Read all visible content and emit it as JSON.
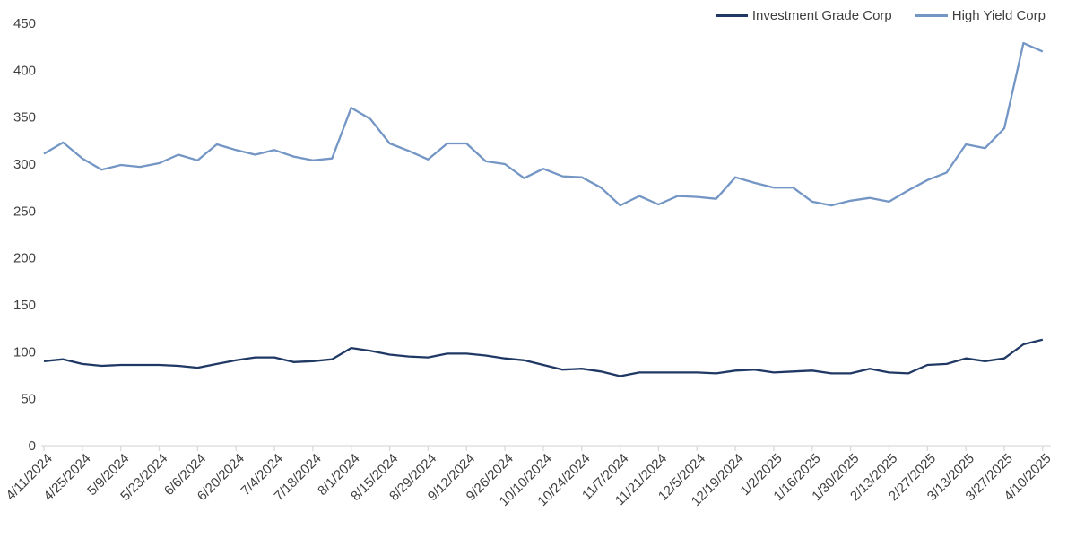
{
  "legend": {
    "items": [
      {
        "label": "Investment Grade Corp",
        "color": "#1f3864"
      },
      {
        "label": "High Yield Corp",
        "color": "#7396c5"
      }
    ]
  },
  "axes": {
    "y_tick_labels": [
      "0",
      "50",
      "100",
      "150",
      "200",
      "250",
      "300",
      "350",
      "400",
      "450"
    ],
    "x_tick_labels": [
      "4/11/2024",
      "4/25/2024",
      "5/9/2024",
      "5/23/2024",
      "6/6/2024",
      "6/20/2024",
      "7/4/2024",
      "7/18/2024",
      "8/1/2024",
      "8/15/2024",
      "8/29/2024",
      "9/12/2024",
      "9/26/2024",
      "10/10/2024",
      "10/24/2024",
      "11/7/2024",
      "11/21/2024",
      "12/5/2024",
      "12/19/2024",
      "1/2/2025",
      "1/16/2025",
      "1/30/2025",
      "2/13/2025",
      "2/27/2025",
      "3/13/2025",
      "3/27/2025",
      "4/10/2025"
    ]
  },
  "colors": {
    "axis": "#d9d9d9",
    "text": "#3f3f3f",
    "background": "#ffffff",
    "investment_grade": "#1f3864",
    "high_yield": "#7396c5"
  },
  "chart_data": {
    "type": "line",
    "title": "",
    "xlabel": "",
    "ylabel": "",
    "ylim": [
      0,
      450
    ],
    "y_tick_step": 50,
    "grid": false,
    "legend_position": "top-right",
    "x_label_rotation": -45,
    "x_tick_interval": 2,
    "x": [
      "4/11/2024",
      "4/18/2024",
      "4/25/2024",
      "5/2/2024",
      "5/9/2024",
      "5/16/2024",
      "5/23/2024",
      "5/30/2024",
      "6/6/2024",
      "6/13/2024",
      "6/20/2024",
      "6/27/2024",
      "7/4/2024",
      "7/11/2024",
      "7/18/2024",
      "7/25/2024",
      "8/1/2024",
      "8/8/2024",
      "8/15/2024",
      "8/22/2024",
      "8/29/2024",
      "9/5/2024",
      "9/12/2024",
      "9/19/2024",
      "9/26/2024",
      "10/3/2024",
      "10/10/2024",
      "10/17/2024",
      "10/24/2024",
      "10/31/2024",
      "11/7/2024",
      "11/14/2024",
      "11/21/2024",
      "11/28/2024",
      "12/5/2024",
      "12/12/2024",
      "12/19/2024",
      "12/26/2024",
      "1/2/2025",
      "1/9/2025",
      "1/16/2025",
      "1/23/2025",
      "1/30/2025",
      "2/6/2025",
      "2/13/2025",
      "2/20/2025",
      "2/27/2025",
      "3/6/2025",
      "3/13/2025",
      "3/20/2025",
      "3/27/2025",
      "4/3/2025",
      "4/10/2025"
    ],
    "series": [
      {
        "name": "Investment Grade Corp",
        "color": "#1f3864",
        "values": [
          90,
          92,
          87,
          85,
          86,
          86,
          86,
          85,
          83,
          87,
          91,
          94,
          94,
          89,
          90,
          92,
          104,
          101,
          97,
          95,
          94,
          98,
          98,
          96,
          93,
          91,
          86,
          81,
          82,
          79,
          74,
          78,
          78,
          78,
          78,
          77,
          80,
          81,
          78,
          79,
          80,
          77,
          77,
          82,
          78,
          77,
          86,
          87,
          93,
          90,
          93,
          108,
          113
        ]
      },
      {
        "name": "High Yield Corp",
        "color": "#7396c5",
        "values": [
          311,
          323,
          306,
          294,
          299,
          297,
          301,
          310,
          304,
          321,
          315,
          310,
          315,
          308,
          304,
          306,
          360,
          348,
          322,
          314,
          305,
          322,
          322,
          303,
          300,
          285,
          295,
          287,
          286,
          275,
          256,
          266,
          257,
          266,
          265,
          263,
          286,
          280,
          275,
          275,
          260,
          256,
          261,
          264,
          260,
          272,
          283,
          291,
          321,
          317,
          338,
          429,
          420
        ]
      }
    ]
  }
}
